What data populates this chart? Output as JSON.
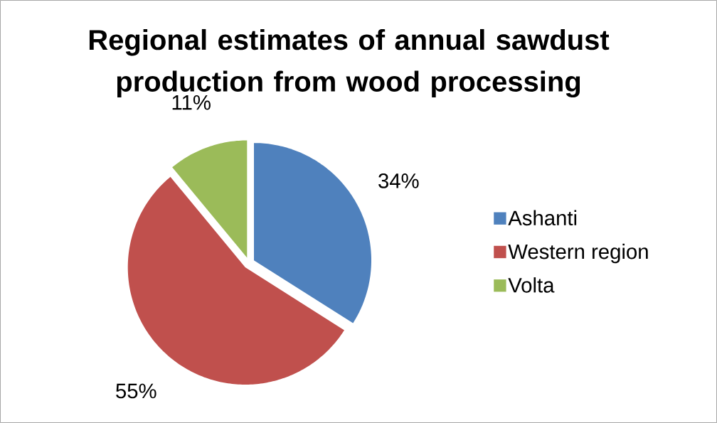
{
  "chart_data": {
    "type": "pie",
    "title": "Regional estimates of annual sawdust production from wood processing",
    "categories": [
      "Ashanti",
      "Western region",
      "Volta"
    ],
    "values": [
      34,
      55,
      11
    ],
    "value_labels": [
      "34%",
      "55%",
      "11%"
    ],
    "colors": [
      "#4f81bd",
      "#c0504d",
      "#9bbb59"
    ],
    "legend": "right"
  }
}
